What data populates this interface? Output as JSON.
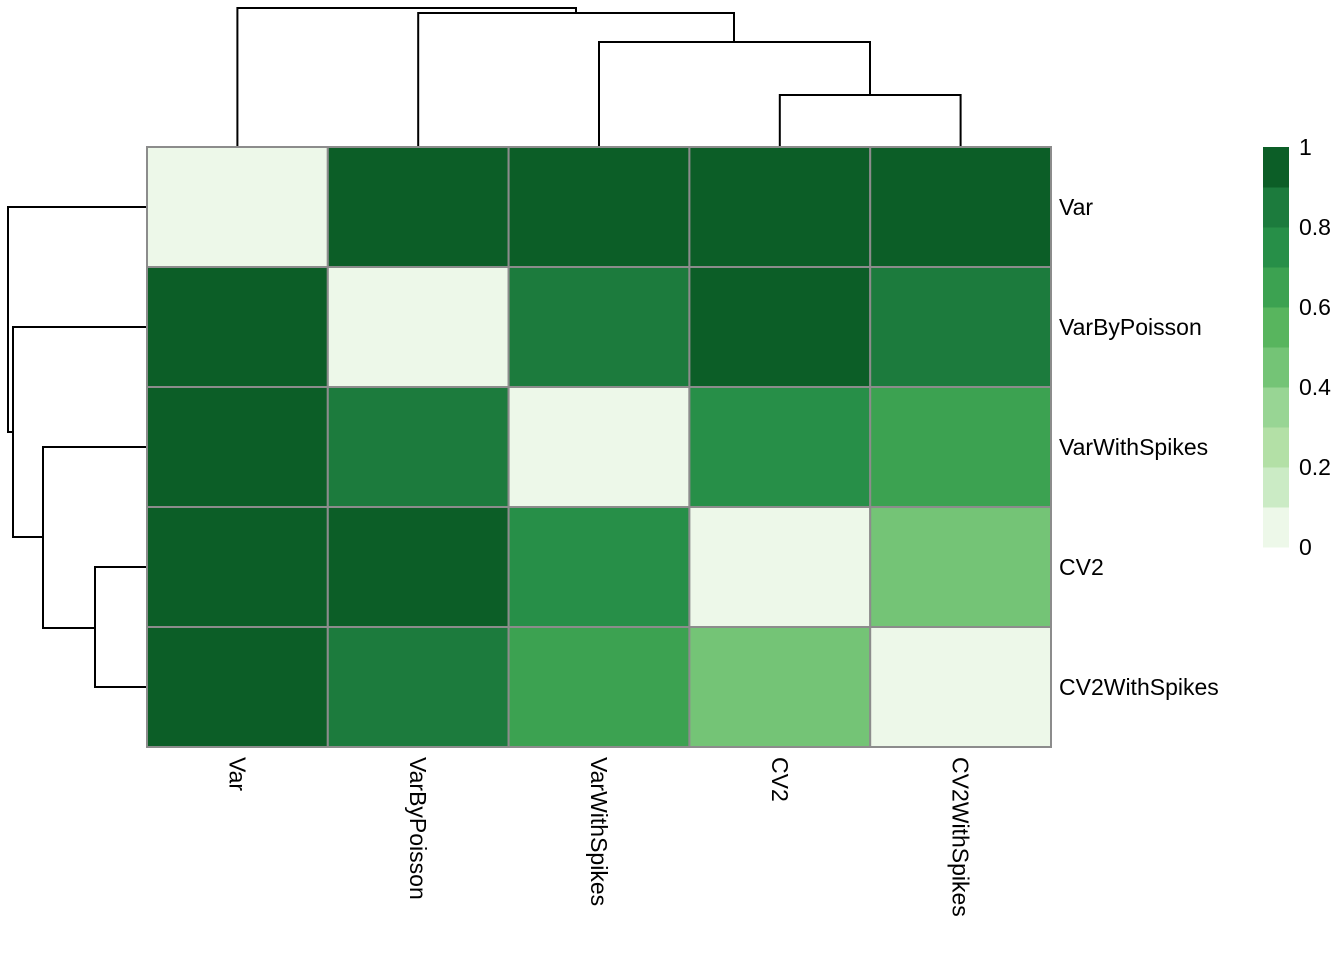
{
  "chart_data": {
    "type": "heatmap",
    "rows": [
      "Var",
      "VarByPoisson",
      "VarWithSpikes",
      "CV2",
      "CV2WithSpikes"
    ],
    "columns": [
      "Var",
      "VarByPoisson",
      "VarWithSpikes",
      "CV2",
      "CV2WithSpikes"
    ],
    "values": [
      [
        0.0,
        1.0,
        0.9,
        0.9,
        0.9
      ],
      [
        1.0,
        0.0,
        0.8,
        0.9,
        0.8
      ],
      [
        0.9,
        0.8,
        0.0,
        0.7,
        0.6
      ],
      [
        0.9,
        0.9,
        0.7,
        0.0,
        0.4
      ],
      [
        0.9,
        0.8,
        0.6,
        0.4,
        0.0
      ]
    ],
    "legend": {
      "ticks": [
        "0",
        "0.2",
        "0.4",
        "0.6",
        "0.8",
        "1"
      ],
      "range": [
        0,
        1
      ],
      "colors": [
        "#EDF8E9",
        "#CBEBC5",
        "#B3E0A6",
        "#98D594",
        "#74C476",
        "#58B55E",
        "#3CA251",
        "#278F48",
        "#1C7B3D",
        "#0C5E27"
      ]
    },
    "dendrogram": "hierarchical clustering on rows and columns"
  }
}
